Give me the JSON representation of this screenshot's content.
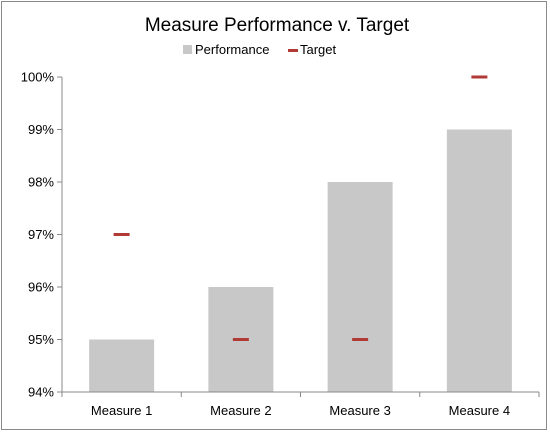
{
  "chart_data": {
    "type": "bar",
    "title": "Measure Performance v. Target",
    "categories": [
      "Measure 1",
      "Measure 2",
      "Measure 3",
      "Measure 4"
    ],
    "series": [
      {
        "name": "Performance",
        "kind": "bar",
        "values": [
          95,
          96,
          98,
          99
        ],
        "color": "#c8c8c8"
      },
      {
        "name": "Target",
        "kind": "marker",
        "values": [
          97,
          95,
          95,
          100
        ],
        "color": "#b03a35"
      }
    ],
    "ylim": [
      94,
      100
    ],
    "yticks": [
      "94%",
      "95%",
      "96%",
      "97%",
      "98%",
      "99%",
      "100%"
    ],
    "grid": false,
    "legend": "top"
  }
}
